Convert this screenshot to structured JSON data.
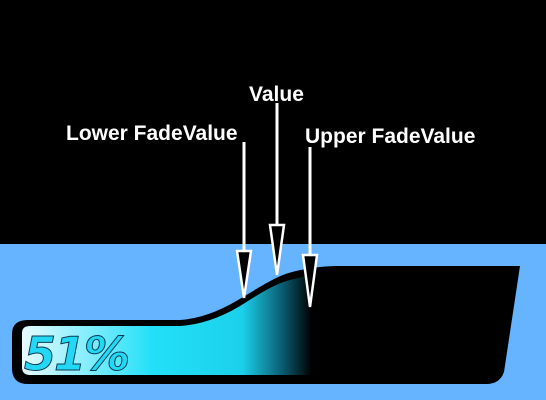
{
  "labels": {
    "lower": "Lower FadeValue",
    "value": "Value",
    "upper": "Upper FadeValue"
  },
  "gauge": {
    "percent_text": "51%",
    "value": 0.51
  },
  "colors": {
    "background_top": "#000000",
    "background_bottom": "#66b3ff",
    "fill_start": "#e6fbff",
    "fill_mid": "#22e0f8",
    "fill_end": "#000000",
    "gauge_body": "#000000",
    "percent_text": "#22d8f4",
    "arrow": "#ffffff"
  }
}
